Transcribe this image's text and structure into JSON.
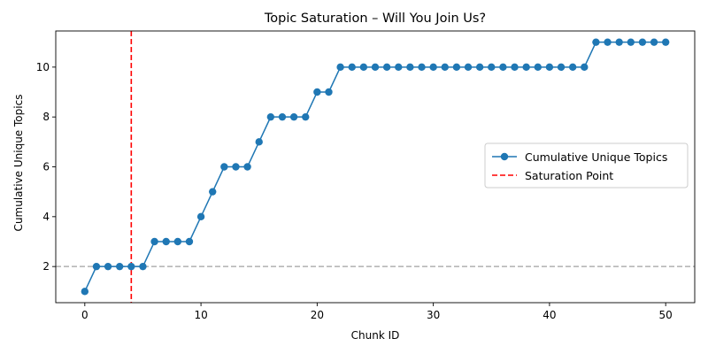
{
  "chart_data": {
    "type": "line",
    "title": "Topic Saturation – Will You Join Us?",
    "xlabel": "Chunk ID",
    "ylabel": "Cumulative Unique Topics",
    "xlim": [
      -2.5,
      52.5
    ],
    "ylim": [
      0.55,
      11.45
    ],
    "xticks": [
      0,
      10,
      20,
      30,
      40,
      50
    ],
    "yticks": [
      2,
      4,
      6,
      8,
      10
    ],
    "grid": false,
    "legend_position": "center-right",
    "series": [
      {
        "name": "Cumulative Unique Topics",
        "color": "#1f77b4",
        "marker": "circle",
        "x": [
          0,
          1,
          2,
          3,
          4,
          5,
          6,
          7,
          8,
          9,
          10,
          11,
          12,
          13,
          14,
          15,
          16,
          17,
          18,
          19,
          20,
          21,
          22,
          23,
          24,
          25,
          26,
          27,
          28,
          29,
          30,
          31,
          32,
          33,
          34,
          35,
          36,
          37,
          38,
          39,
          40,
          41,
          42,
          43,
          44,
          45,
          46,
          47,
          48,
          49,
          50
        ],
        "values": [
          1,
          2,
          2,
          2,
          2,
          2,
          3,
          3,
          3,
          3,
          4,
          5,
          6,
          6,
          6,
          7,
          8,
          8,
          8,
          8,
          9,
          9,
          10,
          10,
          10,
          10,
          10,
          10,
          10,
          10,
          10,
          10,
          10,
          10,
          10,
          10,
          10,
          10,
          10,
          10,
          10,
          10,
          10,
          10,
          11,
          11,
          11,
          11,
          11,
          11,
          11
        ]
      }
    ],
    "reference_lines": [
      {
        "name": "Saturation Point",
        "orientation": "vertical",
        "value": 4,
        "color": "#ff0000",
        "style": "dashed"
      },
      {
        "orientation": "horizontal",
        "value": 2,
        "color": "#b0b0b0",
        "style": "dashed"
      }
    ]
  }
}
